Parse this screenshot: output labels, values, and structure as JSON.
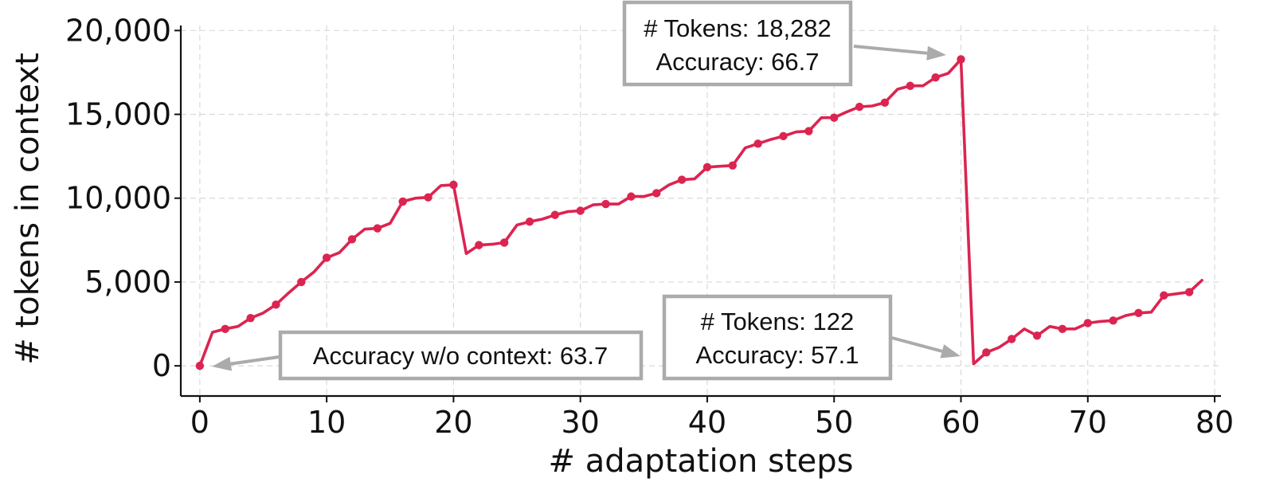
{
  "chart_data": {
    "type": "line",
    "title": "",
    "xlabel": "# adaptation steps",
    "ylabel": "# tokens in context",
    "xlim": [
      -1.5,
      80.5
    ],
    "ylim": [
      -1800,
      20300
    ],
    "xticks": [
      0,
      10,
      20,
      30,
      40,
      50,
      60,
      70,
      80
    ],
    "xtick_labels": [
      "0",
      "10",
      "20",
      "30",
      "40",
      "50",
      "60",
      "70",
      "80"
    ],
    "yticks": [
      0,
      5000,
      10000,
      15000,
      20000
    ],
    "ytick_labels": [
      "0",
      "5,000",
      "10,000",
      "15,000",
      "20,000"
    ],
    "grid": true,
    "line_color": "#dc2451",
    "series": [
      {
        "x": [
          0,
          1,
          2,
          3,
          4,
          5,
          6,
          7,
          8,
          9,
          10,
          11,
          12,
          13,
          14,
          15,
          16,
          17,
          18,
          19,
          20,
          21,
          22,
          23,
          24,
          25,
          26,
          27,
          28,
          29,
          30,
          31,
          32,
          33,
          34,
          35,
          36,
          37,
          38,
          39,
          40,
          41,
          42,
          43,
          44,
          45,
          46,
          47,
          48,
          49,
          50,
          51,
          52,
          53,
          54,
          55,
          56,
          57,
          58,
          59,
          60,
          61,
          62,
          63,
          64,
          65,
          66,
          67,
          68,
          69,
          70,
          71,
          72,
          73,
          74,
          75,
          76,
          77,
          78,
          79
        ],
        "y": [
          0,
          2000,
          2200,
          2350,
          2850,
          3150,
          3650,
          4350,
          5000,
          5600,
          6450,
          6750,
          7550,
          8150,
          8200,
          8500,
          9800,
          10000,
          10050,
          10750,
          10800,
          6700,
          7200,
          7250,
          7350,
          8400,
          8600,
          8750,
          9000,
          9200,
          9250,
          9600,
          9650,
          9650,
          10100,
          10100,
          10300,
          10800,
          11100,
          11150,
          11850,
          11900,
          11950,
          13000,
          13250,
          13500,
          13700,
          13950,
          14000,
          14800,
          14800,
          15150,
          15450,
          15500,
          15700,
          16500,
          16700,
          16700,
          17200,
          17450,
          18282,
          122,
          800,
          1100,
          1600,
          2200,
          1800,
          2350,
          2200,
          2200,
          2550,
          2650,
          2700,
          3000,
          3150,
          3200,
          4200,
          4300,
          4400,
          5100
        ],
        "markers_at": [
          0,
          2,
          4,
          6,
          8,
          10,
          12,
          14,
          16,
          18,
          20,
          22,
          24,
          26,
          28,
          30,
          32,
          34,
          36,
          38,
          40,
          42,
          44,
          46,
          48,
          50,
          52,
          54,
          56,
          58,
          60,
          62,
          64,
          66,
          68,
          70,
          72,
          74,
          76,
          78
        ]
      }
    ],
    "annotations": [
      {
        "lines": [
          "# Tokens: 18,282",
          "Accuracy: 66.7"
        ],
        "point": [
          60,
          18282
        ]
      },
      {
        "lines": [
          "Accuracy w/o context: 63.7"
        ],
        "point": [
          0,
          0
        ]
      },
      {
        "lines": [
          "# Tokens: 122",
          "Accuracy: 57.1"
        ],
        "point": [
          61,
          122
        ]
      }
    ]
  }
}
